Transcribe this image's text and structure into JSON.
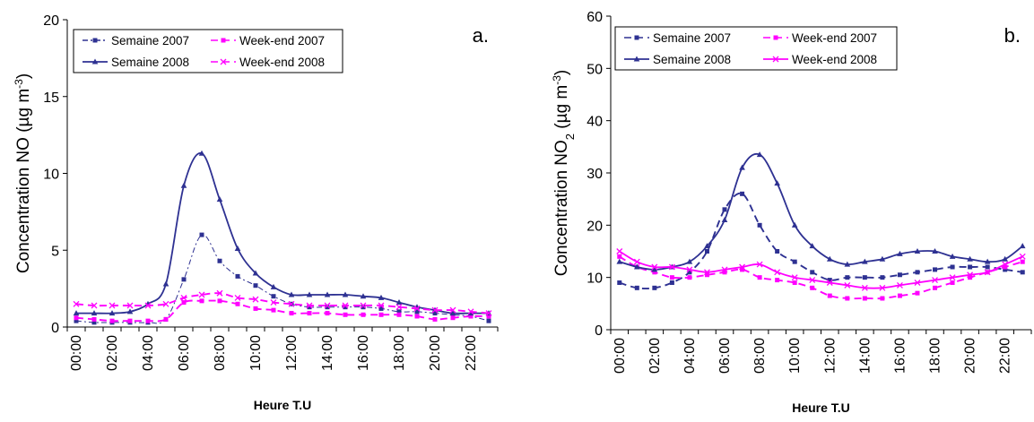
{
  "colors": {
    "navy": "#2E3192",
    "magenta": "#FF00FF"
  },
  "chart_data": [
    {
      "type": "line",
      "panel_label": "a.",
      "xlabel": "Heure T.U",
      "ylabel": "Concentration NO (µg m",
      "ylabel_sup": "-3",
      "ylabel_close": ")",
      "ylim": [
        0,
        20
      ],
      "yticks": [
        "0",
        "5",
        "10",
        "15",
        "20"
      ],
      "categories": [
        "00:00",
        "01:00",
        "02:00",
        "03:00",
        "04:00",
        "05:00",
        "06:00",
        "07:00",
        "08:00",
        "09:00",
        "10:00",
        "11:00",
        "12:00",
        "13:00",
        "14:00",
        "15:00",
        "16:00",
        "17:00",
        "18:00",
        "19:00",
        "20:00",
        "21:00",
        "22:00",
        "23:00"
      ],
      "xtick_labels": [
        "00:00",
        "02:00",
        "04:00",
        "06:00",
        "08:00",
        "10:00",
        "12:00",
        "14:00",
        "16:00",
        "18:00",
        "20:00",
        "22:00"
      ],
      "legend_position": "top-left",
      "series": [
        {
          "name": "Semaine 2007",
          "style": "dashdot",
          "marker": "square",
          "color": "#2E3192",
          "values": [
            0.4,
            0.3,
            0.3,
            0.3,
            0.3,
            0.5,
            3.1,
            6.0,
            4.3,
            3.3,
            2.7,
            2.0,
            1.5,
            1.3,
            1.3,
            1.3,
            1.3,
            1.2,
            1.0,
            1.0,
            0.9,
            0.8,
            0.7,
            0.4
          ]
        },
        {
          "name": "Week-end 2007",
          "style": "dashed",
          "marker": "square",
          "color": "#FF00FF",
          "values": [
            0.6,
            0.5,
            0.4,
            0.4,
            0.4,
            0.5,
            1.6,
            1.7,
            1.7,
            1.5,
            1.2,
            1.1,
            0.9,
            0.9,
            0.9,
            0.8,
            0.8,
            0.8,
            0.8,
            0.7,
            0.5,
            0.6,
            0.7,
            0.7
          ]
        },
        {
          "name": "Semaine 2008",
          "style": "solid",
          "marker": "triangle",
          "color": "#2E3192",
          "values": [
            0.9,
            0.9,
            0.9,
            1.0,
            1.5,
            2.8,
            9.2,
            11.3,
            8.3,
            5.1,
            3.5,
            2.6,
            2.1,
            2.1,
            2.1,
            2.1,
            2.0,
            1.9,
            1.6,
            1.3,
            1.1,
            0.9,
            0.9,
            0.9
          ]
        },
        {
          "name": "Week-end 2008",
          "style": "dashed",
          "marker": "x",
          "color": "#FF00FF",
          "values": [
            1.5,
            1.4,
            1.4,
            1.4,
            1.4,
            1.5,
            1.9,
            2.1,
            2.2,
            1.9,
            1.8,
            1.6,
            1.5,
            1.4,
            1.4,
            1.4,
            1.4,
            1.4,
            1.3,
            1.2,
            1.1,
            1.1,
            1.0,
            0.9
          ]
        }
      ]
    },
    {
      "type": "line",
      "panel_label": "b.",
      "xlabel": "Heure T.U",
      "ylabel": "Concentration NO",
      "ylabel_sub": "2",
      "ylabel_tail": " (µg m",
      "ylabel_sup": "-3",
      "ylabel_close": ")",
      "ylim": [
        0,
        60
      ],
      "yticks": [
        "0",
        "10",
        "20",
        "30",
        "40",
        "50",
        "60"
      ],
      "categories": [
        "00:00",
        "01:00",
        "02:00",
        "03:00",
        "04:00",
        "05:00",
        "06:00",
        "07:00",
        "08:00",
        "09:00",
        "10:00",
        "11:00",
        "12:00",
        "13:00",
        "14:00",
        "15:00",
        "16:00",
        "17:00",
        "18:00",
        "19:00",
        "20:00",
        "21:00",
        "22:00",
        "23:00"
      ],
      "xtick_labels": [
        "00:00",
        "02:00",
        "04:00",
        "06:00",
        "08:00",
        "10:00",
        "12:00",
        "14:00",
        "16:00",
        "18:00",
        "20:00",
        "22:00"
      ],
      "legend_position": "top-left",
      "series": [
        {
          "name": "Semaine 2007",
          "style": "dashed",
          "marker": "square",
          "color": "#2E3192",
          "values": [
            9,
            8,
            8,
            9,
            11,
            15,
            23,
            26,
            20,
            15,
            13,
            11,
            9.5,
            10,
            10,
            10,
            10.5,
            11,
            11.5,
            12,
            12,
            12,
            11.5,
            11
          ]
        },
        {
          "name": "Week-end 2007",
          "style": "dashed",
          "marker": "square",
          "color": "#FF00FF",
          "values": [
            14,
            12,
            11,
            10,
            10,
            10.5,
            11,
            11.5,
            10,
            9.5,
            9,
            8,
            6.5,
            6,
            6,
            6,
            6.5,
            7,
            8,
            9,
            10,
            11,
            12,
            13
          ]
        },
        {
          "name": "Semaine 2008",
          "style": "solid",
          "marker": "triangle",
          "color": "#2E3192",
          "values": [
            13,
            12,
            11.5,
            12,
            13,
            16,
            21,
            31,
            33.5,
            28,
            20,
            16,
            13.5,
            12.5,
            13,
            13.5,
            14.5,
            15,
            15,
            14,
            13.5,
            13,
            13.5,
            16
          ]
        },
        {
          "name": "Week-end 2008",
          "style": "solid",
          "marker": "x",
          "color": "#FF00FF",
          "values": [
            15,
            13,
            12,
            12,
            11.5,
            11,
            11.5,
            12,
            12.5,
            11,
            10,
            9.5,
            9,
            8.5,
            8,
            8,
            8.5,
            9,
            9.5,
            10,
            10.5,
            11,
            12.5,
            14
          ]
        }
      ]
    }
  ]
}
